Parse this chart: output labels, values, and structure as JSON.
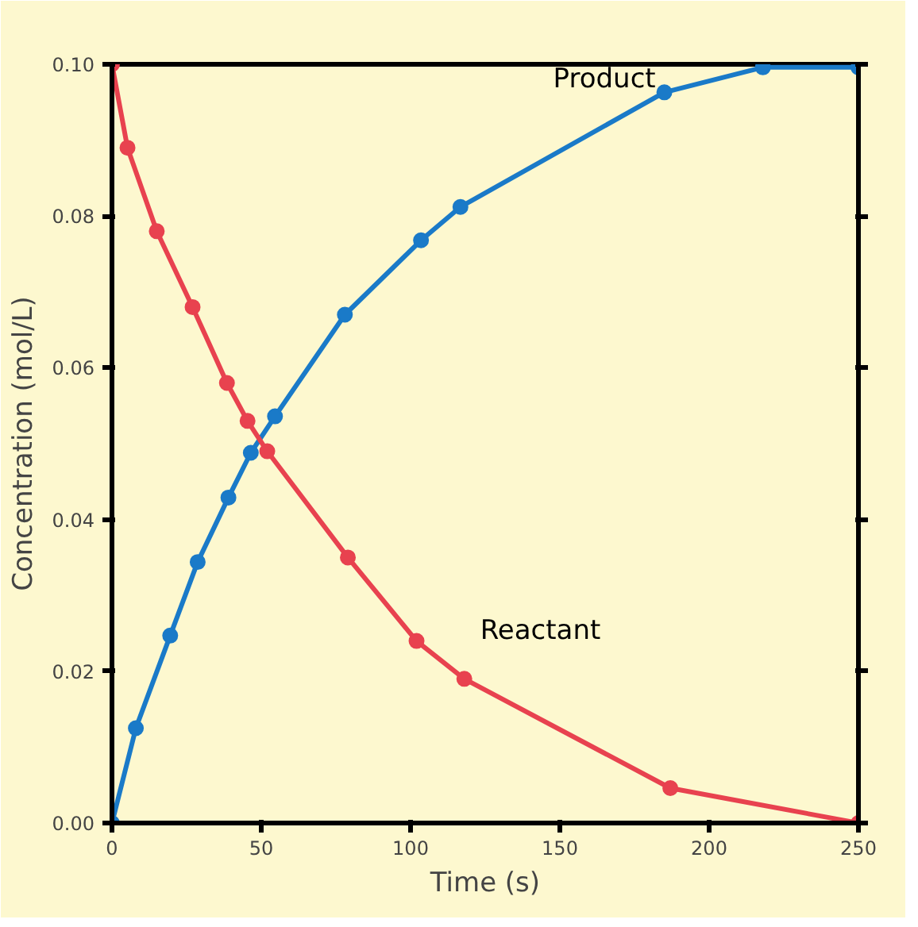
{
  "chart_data": {
    "type": "line",
    "xlabel": "Time (s)",
    "ylabel": "Concentration (mol/L)",
    "xlim": [
      0,
      250
    ],
    "xticks": [
      0,
      50,
      100,
      150,
      200,
      250
    ],
    "ylim": [
      0,
      0.1
    ],
    "yticks": [
      {
        "value": 0,
        "label": "0.00"
      },
      {
        "value": 0.02,
        "label": "0.02"
      },
      {
        "value": 0.04,
        "label": "0.04"
      },
      {
        "value": 0.06,
        "label": "0.06"
      },
      {
        "value": 0.08,
        "label": "0.08"
      },
      {
        "value": 0.1,
        "label": "0.10"
      }
    ],
    "grid": false,
    "marker": "circle",
    "line_style": "solid",
    "series": [
      {
        "name": "Product",
        "color": "#1a7ac8",
        "x": [
          0,
          8,
          19.5,
          28.7,
          39,
          46.5,
          54.6,
          78,
          103.5,
          116.7,
          185,
          218,
          250
        ],
        "values": [
          0,
          0.0125,
          0.0247,
          0.0344,
          0.0429,
          0.0488,
          0.0536,
          0.067,
          0.0768,
          0.0812,
          0.0963,
          0.0996,
          0.0996
        ]
      },
      {
        "name": "Reactant",
        "color": "#e8424f",
        "x": [
          0,
          5.2,
          15,
          27,
          38.5,
          45.4,
          52,
          79,
          102,
          118,
          187,
          250
        ],
        "values": [
          0.1,
          0.089,
          0.078,
          0.068,
          0.058,
          0.053,
          0.049,
          0.035,
          0.024,
          0.019,
          0.0046,
          0
        ]
      }
    ]
  }
}
